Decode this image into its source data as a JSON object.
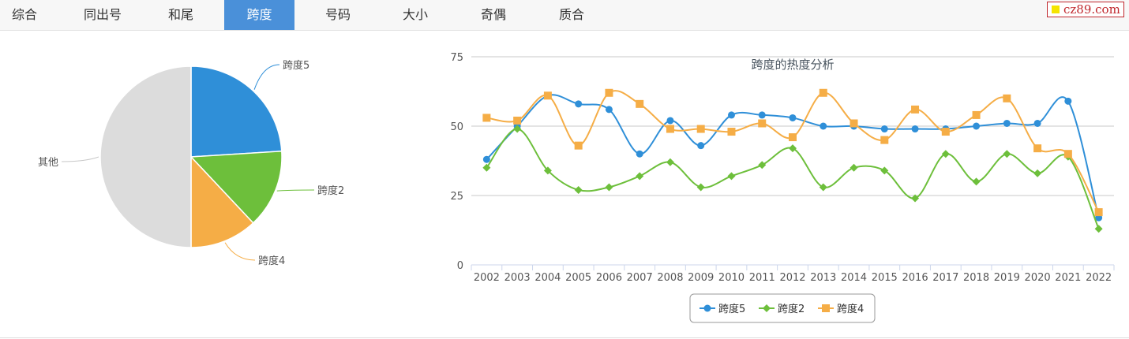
{
  "tabs": [
    {
      "label": "综合",
      "active": false
    },
    {
      "label": "同出号",
      "active": false
    },
    {
      "label": "和尾",
      "active": false
    },
    {
      "label": "跨度",
      "active": true
    },
    {
      "label": "号码",
      "active": false
    },
    {
      "label": "大小",
      "active": false
    },
    {
      "label": "奇偶",
      "active": false
    },
    {
      "label": "质合",
      "active": false
    }
  ],
  "logo_text": "cz89.com",
  "chart_data": [
    {
      "type": "pie",
      "slices": [
        {
          "label": "跨度5",
          "value": 24,
          "color": "#2f8fd8"
        },
        {
          "label": "跨度2",
          "value": 14,
          "color": "#6dbf3b"
        },
        {
          "label": "跨度4",
          "value": 12,
          "color": "#f5ad46"
        },
        {
          "label": "其他",
          "value": 50,
          "color": "#dcdcdc"
        }
      ]
    },
    {
      "type": "line",
      "title": "跨度的热度分析",
      "x": [
        "2002",
        "2003",
        "2004",
        "2005",
        "2006",
        "2007",
        "2008",
        "2009",
        "2010",
        "2011",
        "2012",
        "2013",
        "2014",
        "2015",
        "2016",
        "2017",
        "2018",
        "2019",
        "2020",
        "2021",
        "2022"
      ],
      "ylim": [
        0,
        75
      ],
      "yticks": [
        0,
        25,
        50,
        75
      ],
      "grid": true,
      "legend": "bottom-center",
      "series": [
        {
          "name": "跨度5",
          "color": "#2f8fd8",
          "marker": "circle",
          "values": [
            38,
            50,
            61,
            58,
            56,
            40,
            52,
            43,
            54,
            54,
            53,
            50,
            50,
            49,
            49,
            49,
            50,
            51,
            51,
            59,
            17
          ]
        },
        {
          "name": "跨度2",
          "color": "#6dbf3b",
          "marker": "diamond",
          "values": [
            35,
            49,
            34,
            27,
            28,
            32,
            37,
            28,
            32,
            36,
            42,
            28,
            35,
            34,
            24,
            40,
            30,
            40,
            33,
            39,
            13
          ]
        },
        {
          "name": "跨度4",
          "color": "#f5ad46",
          "marker": "square",
          "values": [
            53,
            52,
            61,
            43,
            62,
            58,
            49,
            49,
            48,
            51,
            46,
            62,
            51,
            45,
            56,
            48,
            54,
            60,
            42,
            40,
            19
          ]
        }
      ]
    }
  ]
}
